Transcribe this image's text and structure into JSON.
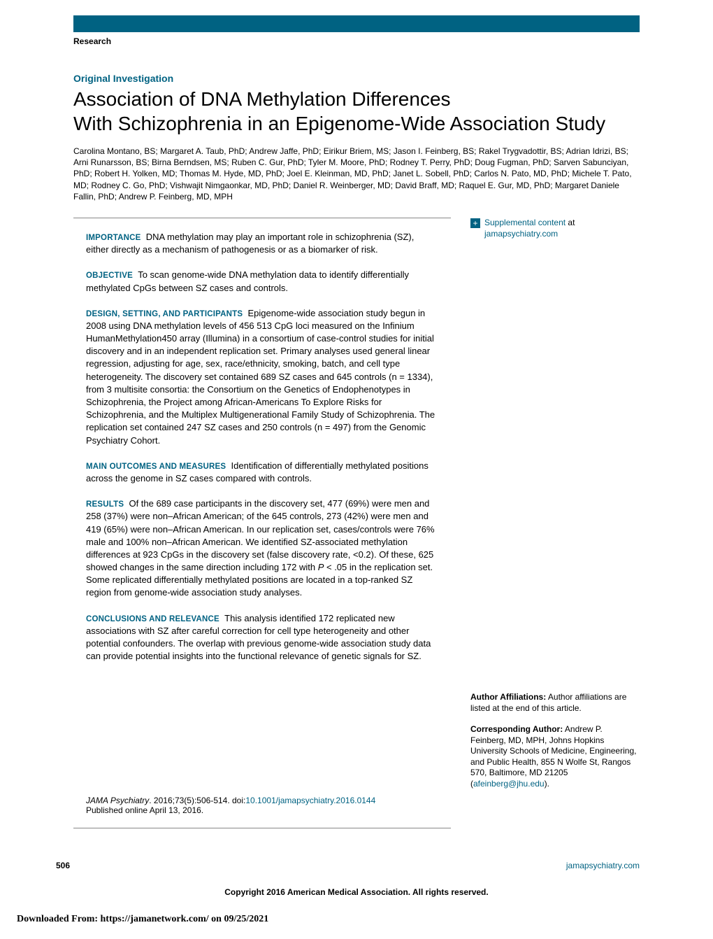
{
  "header": {
    "section_label": "Research",
    "bar_color": "#006282"
  },
  "article": {
    "category": "Original Investigation",
    "title_line1": "Association of DNA Methylation Differences",
    "title_line2": "With Schizophrenia in an Epigenome-Wide Association Study",
    "authors": "Carolina Montano, BS; Margaret A. Taub, PhD; Andrew Jaffe, PhD; Eirikur Briem, MS; Jason I. Feinberg, BS; Rakel Trygvadottir, BS; Adrian Idrizi, BS; Arni Runarsson, BS; Birna Berndsen, MS; Ruben C. Gur, PhD; Tyler M. Moore, PhD; Rodney T. Perry, PhD; Doug Fugman, PhD; Sarven Sabunciyan, PhD; Robert H. Yolken, MD; Thomas M. Hyde, MD, PhD; Joel E. Kleinman, MD, PhD; Janet L. Sobell, PhD; Carlos N. Pato, MD, PhD; Michele T. Pato, MD; Rodney C. Go, PhD; Vishwajit Nimgaonkar, MD, PhD; Daniel R. Weinberger, MD; David Braff, MD; Raquel E. Gur, MD, PhD; Margaret Daniele Fallin, PhD; Andrew P. Feinberg, MD, MPH"
  },
  "abstract": {
    "importance": {
      "label": "IMPORTANCE",
      "text": "DNA methylation may play an important role in schizophrenia (SZ), either directly as a mechanism of pathogenesis or as a biomarker of risk."
    },
    "objective": {
      "label": "OBJECTIVE",
      "text": "To scan genome-wide DNA methylation data to identify differentially methylated CpGs between SZ cases and controls."
    },
    "design": {
      "label": "DESIGN, SETTING, AND PARTICIPANTS",
      "text": "Epigenome-wide association study begun in 2008 using DNA methylation levels of 456 513 CpG loci measured on the Infinium HumanMethylation450 array (Illumina) in a consortium of case-control studies for initial discovery and in an independent replication set. Primary analyses used general linear regression, adjusting for age, sex, race/ethnicity, smoking, batch, and cell type heterogeneity. The discovery set contained 689 SZ cases and 645 controls (n = 1334), from 3 multisite consortia: the Consortium on the Genetics of Endophenotypes in Schizophrenia, the Project among African-Americans To Explore Risks for Schizophrenia, and the Multiplex Multigenerational Family Study of Schizophrenia. The replication set contained 247 SZ cases and 250 controls (n = 497) from the Genomic Psychiatry Cohort."
    },
    "outcomes": {
      "label": "MAIN OUTCOMES AND MEASURES",
      "text": "Identification of differentially methylated positions across the genome in SZ cases compared with controls."
    },
    "results": {
      "label": "RESULTS",
      "text_a": "Of the 689 case participants in the discovery set, 477 (69%) were men and 258 (37%) were non–African American; of the 645 controls, 273 (42%) were men and 419 (65%) were non–African American. In our replication set, cases/controls were 76% male and 100% non–African American. We identified SZ-associated methylation differences at 923 CpGs in the discovery set (false discovery rate, <0.2). Of these, 625 showed changes in the same direction including 172 with ",
      "p_italic": "P",
      "text_b": " < .05 in the replication set. Some replicated differentially methylated positions are located in a top-ranked SZ region from genome-wide association study analyses."
    },
    "conclusions": {
      "label": "CONCLUSIONS AND RELEVANCE",
      "text": "This analysis identified 172 replicated new associations with SZ after careful correction for cell type heterogeneity and other potential confounders. The overlap with previous genome-wide association study data can provide potential insights into the functional relevance of genetic signals for SZ."
    }
  },
  "citation": {
    "journal": "JAMA Psychiatry",
    "ref": ". 2016;73(5):506-514. doi:",
    "doi": "10.1001/jamapsychiatry.2016.0144",
    "published": "Published online April 13, 2016."
  },
  "sidebar": {
    "supplemental_link": "Supplemental content",
    "supplemental_at": " at ",
    "supplemental_site": "jamapsychiatry.com",
    "affiliations_label": "Author Affiliations:",
    "affiliations_text": " Author affiliations are listed at the end of this article.",
    "corresponding_label": "Corresponding Author:",
    "corresponding_text": " Andrew P. Feinberg, MD, MPH, Johns Hopkins University Schools of Medicine, Engineering, and Public Health, 855 N Wolfe St, Rangos 570, Baltimore, MD 21205 (",
    "corresponding_email": "afeinberg@jhu.edu",
    "corresponding_close": ")."
  },
  "footer": {
    "page_number": "506",
    "site": "jamapsychiatry.com",
    "copyright": "Copyright 2016 American Medical Association. All rights reserved.",
    "download": "Downloaded From: https://jamanetwork.com/ on 09/25/2021"
  },
  "colors": {
    "accent": "#006282",
    "text": "#000000",
    "background": "#ffffff",
    "rule": "#888888"
  },
  "typography": {
    "title_size_pt": 28,
    "body_size_pt": 13,
    "small_size_pt": 12,
    "font_sans": "Arial",
    "font_serif": "Georgia"
  }
}
